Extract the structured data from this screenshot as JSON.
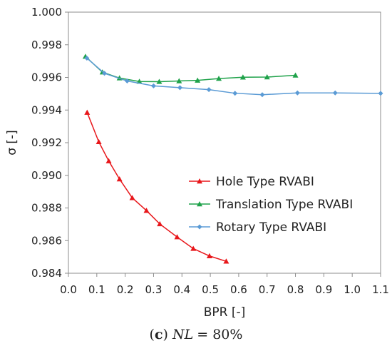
{
  "chart_data": {
    "type": "line",
    "xlabel": "BPR [-]",
    "ylabel": "σ [-]",
    "xlim": [
      0.0,
      1.1
    ],
    "ylim": [
      0.984,
      1.0
    ],
    "x_ticks": [
      "0.0",
      "0.1",
      "0.2",
      "0.3",
      "0.4",
      "0.5",
      "0.6",
      "0.7",
      "0.8",
      "0.9",
      "1.0",
      "1.1"
    ],
    "y_ticks": [
      "0.984",
      "0.986",
      "0.988",
      "0.990",
      "0.992",
      "0.994",
      "0.996",
      "0.998",
      "1.000"
    ],
    "grid": false,
    "legend_position": "right-center",
    "series": [
      {
        "name": "Hole Type RVABI",
        "color": "#e8171b",
        "marker": "triangle",
        "x": [
          0.066,
          0.107,
          0.142,
          0.18,
          0.225,
          0.275,
          0.322,
          0.383,
          0.44,
          0.497,
          0.556
        ],
        "y": [
          0.99385,
          0.99205,
          0.99088,
          0.98977,
          0.98862,
          0.98784,
          0.98702,
          0.98622,
          0.98551,
          0.98506,
          0.98473
        ]
      },
      {
        "name": "Translation Type RVABI",
        "color": "#1fa24a",
        "marker": "triangle",
        "x": [
          0.06,
          0.12,
          0.18,
          0.25,
          0.32,
          0.39,
          0.455,
          0.53,
          0.615,
          0.7,
          0.8
        ],
        "y": [
          0.99728,
          0.99632,
          0.99596,
          0.99575,
          0.99574,
          0.99578,
          0.99582,
          0.99593,
          0.99601,
          0.99602,
          0.99613
        ]
      },
      {
        "name": "Rotary Type RVABI",
        "color": "#5b9bd5",
        "marker": "diamond",
        "x": [
          0.065,
          0.127,
          0.207,
          0.3,
          0.393,
          0.495,
          0.587,
          0.683,
          0.807,
          0.94,
          1.1
        ],
        "y": [
          0.99718,
          0.99625,
          0.99578,
          0.99548,
          0.99537,
          0.99525,
          0.99503,
          0.99494,
          0.99505,
          0.99505,
          0.99502
        ]
      }
    ]
  },
  "caption": {
    "label": "c",
    "lhs": "NL",
    "rhs": "= 80%"
  }
}
